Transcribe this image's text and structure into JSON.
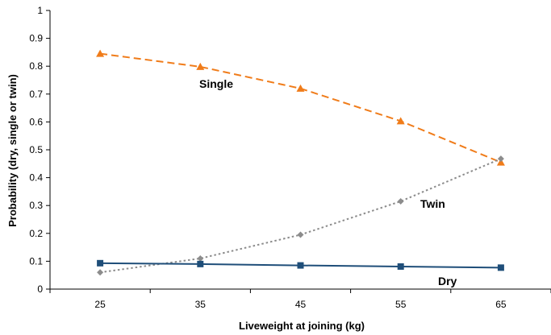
{
  "chart_data": {
    "type": "line",
    "title": "",
    "xlabel": "Liveweight at joining (kg)",
    "ylabel": "Probability (dry, single or twin)",
    "x": [
      25,
      35,
      45,
      55,
      65
    ],
    "x_ticks": [
      "25",
      "35",
      "45",
      "55",
      "65"
    ],
    "xlim": [
      20,
      70
    ],
    "ylim": [
      0,
      1
    ],
    "y_ticks": [
      "0",
      "0.1",
      "0.2",
      "0.3",
      "0.4",
      "0.5",
      "0.6",
      "0.7",
      "0.8",
      "0.9",
      "1"
    ],
    "grid": false,
    "legend": "none",
    "series": [
      {
        "name": "Single",
        "values": [
          0.845,
          0.798,
          0.72,
          0.603,
          0.455
        ],
        "color": "#f07c1a",
        "line_style": "dashed",
        "marker": "triangle"
      },
      {
        "name": "Twin",
        "values": [
          0.06,
          0.11,
          0.195,
          0.315,
          0.468
        ],
        "color": "#8c8c8c",
        "line_style": "dotted",
        "marker": "diamond"
      },
      {
        "name": "Dry",
        "values": [
          0.093,
          0.09,
          0.085,
          0.081,
          0.077
        ],
        "color": "#1f4e79",
        "line_style": "solid",
        "marker": "square"
      }
    ]
  }
}
